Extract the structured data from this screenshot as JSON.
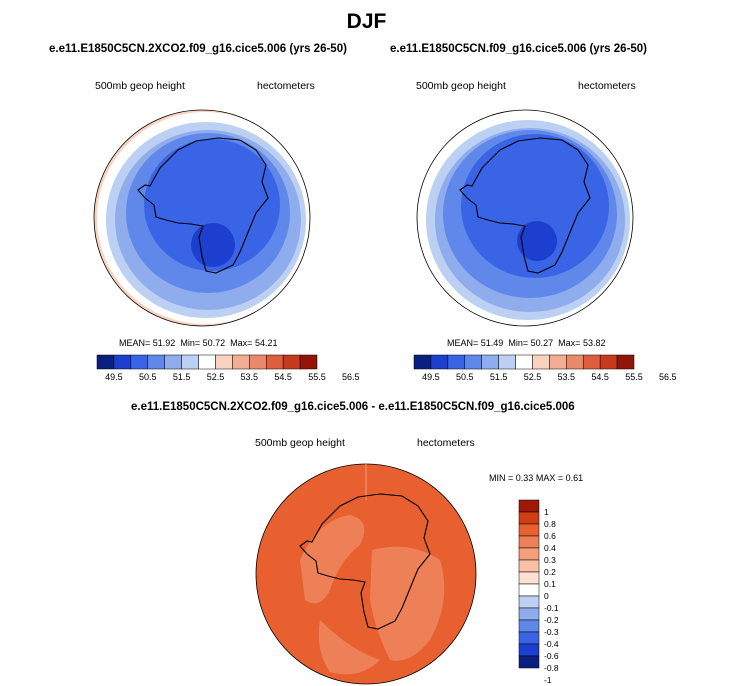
{
  "title": "DJF",
  "field_label": "500mb geop height",
  "units_label": "hectometers",
  "panels": [
    {
      "id": "top-left",
      "title": "e.e11.E1850C5CN.2XCO2.f09_g16.cice5.006 (yrs 26-50)",
      "stats": {
        "mean_label": "MEAN=",
        "mean": "51.92",
        "min_label": "Min=",
        "min": "50.72",
        "max_label": "Max=",
        "max": "54.21"
      }
    },
    {
      "id": "top-right",
      "title": "e.e11.E1850C5CN.f09_g16.cice5.006 (yrs 26-50)",
      "stats": {
        "mean_label": "MEAN=",
        "mean": "51.49",
        "min_label": "Min=",
        "min": "50.27",
        "max_label": "Max=",
        "max": "53.82"
      }
    }
  ],
  "diff_panel": {
    "title": "e.e11.E1850C5CN.2XCO2.f09_g16.cice5.006 - e.e11.E1850C5CN.f09_g16.cice5.006",
    "stats": {
      "min_label": "MIN =",
      "min": "0.33",
      "max_label": "MAX =",
      "max": "0.61"
    }
  },
  "colors": {
    "mean_scale": [
      "#0a2080",
      "#1c3fd0",
      "#3a64e6",
      "#6088ea",
      "#8faced",
      "#bcd0f4",
      "#ffffff",
      "#f9d3bf",
      "#f2ae92",
      "#ea8a6a",
      "#df5e3e",
      "#c83a1e",
      "#921408"
    ],
    "diff_scale": [
      "#0a2080",
      "#1c3fd0",
      "#3a64e6",
      "#6088ea",
      "#8faced",
      "#bcd0f4",
      "#ffffff",
      "#fde0cf",
      "#f8c1a5",
      "#f4a07c",
      "#ee8057",
      "#e8602f",
      "#d03e16",
      "#a01808"
    ],
    "coast": "#000000"
  },
  "chart_data": [
    {
      "type": "heatmap",
      "title": "e.e11.E1850C5CN.2XCO2.f09_g16.cice5.006 (yrs 26-50)",
      "field": "500mb geop height",
      "units": "hectometers",
      "projection": "south polar stereographic",
      "mean": 51.92,
      "min": 50.72,
      "max": 54.21,
      "levels": [
        49.5,
        50,
        50.5,
        51,
        51.5,
        52,
        52.5,
        53,
        53.5,
        54,
        54.5,
        55,
        55.5,
        56,
        56.5
      ],
      "colorbar_labels": [
        "49.5",
        "50.5",
        "51.5",
        "52.5",
        "53.5",
        "54.5",
        "55.5",
        "56.5"
      ]
    },
    {
      "type": "heatmap",
      "title": "e.e11.E1850C5CN.f09_g16.cice5.006 (yrs 26-50)",
      "field": "500mb geop height",
      "units": "hectometers",
      "projection": "south polar stereographic",
      "mean": 51.49,
      "min": 50.27,
      "max": 53.82,
      "levels": [
        49.5,
        50,
        50.5,
        51,
        51.5,
        52,
        52.5,
        53,
        53.5,
        54,
        54.5,
        55,
        55.5,
        56,
        56.5
      ],
      "colorbar_labels": [
        "49.5",
        "50.5",
        "51.5",
        "52.5",
        "53.5",
        "54.5",
        "55.5",
        "56.5"
      ]
    },
    {
      "type": "heatmap",
      "title": "e.e11.E1850C5CN.2XCO2.f09_g16.cice5.006 - e.e11.E1850C5CN.f09_g16.cice5.006",
      "field": "500mb geop height",
      "units": "hectometers",
      "projection": "south polar stereographic",
      "min": 0.33,
      "max": 0.61,
      "levels": [
        -1,
        -0.8,
        -0.6,
        -0.4,
        -0.3,
        -0.2,
        -0.1,
        0,
        0.1,
        0.2,
        0.3,
        0.4,
        0.6,
        0.8,
        1
      ],
      "colorbar_labels": [
        "1",
        "0.8",
        "0.6",
        "0.4",
        "0.3",
        "0.2",
        "0.1",
        "0",
        "-0.1",
        "-0.2",
        "-0.3",
        "-0.4",
        "-0.6",
        "-0.8",
        "-1"
      ]
    }
  ]
}
